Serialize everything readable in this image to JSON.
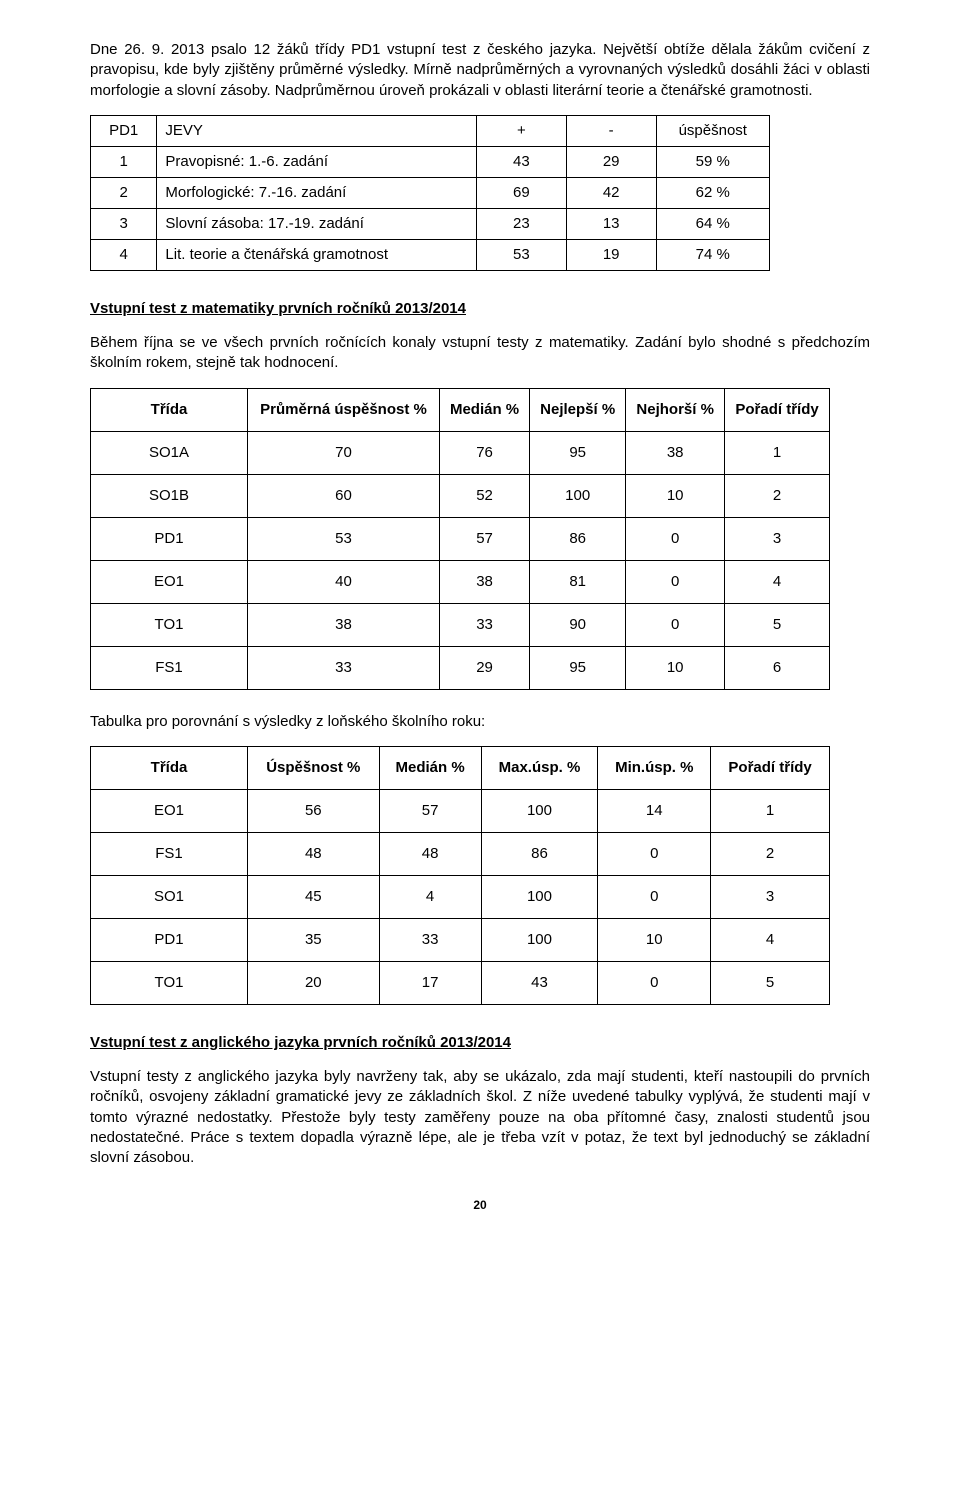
{
  "intro1": "Dne 26. 9. 2013 psalo 12 žáků třídy PD1 vstupní test z českého jazyka. Největší obtíže dělala žákům cvičení z pravopisu, kde byly zjištěny průměrné výsledky. Mírně nadprůměrných a vyrovnaných výsledků dosáhli žáci v oblasti morfologie a slovní zásoby. Nadprůměrnou úroveň prokázali v oblasti literární teorie a čtenářské gramotnosti.",
  "table1": {
    "header": {
      "id": "PD1",
      "label": "JEVY",
      "plus": "+",
      "minus": "-",
      "pct": "úspěšnost"
    },
    "rows": [
      {
        "n": "1",
        "label": "Pravopisné: 1.-6. zadání",
        "plus": "43",
        "minus": "29",
        "pct": "59 %"
      },
      {
        "n": "2",
        "label": "Morfologické: 7.-16. zadání",
        "plus": "69",
        "minus": "42",
        "pct": "62 %"
      },
      {
        "n": "3",
        "label": "Slovní zásoba: 17.-19. zadání",
        "plus": "23",
        "minus": "13",
        "pct": "64 %"
      },
      {
        "n": "4",
        "label": "Lit. teorie a čtenářská gramotnost",
        "plus": "53",
        "minus": "19",
        "pct": "74 %"
      }
    ]
  },
  "section2_title": "Vstupní test z matematiky prvních ročníků 2013/2014",
  "section2_text": "Během října se ve všech prvních ročnících konaly vstupní testy z matematiky. Zadání bylo shodné s předchozím školním rokem, stejně tak hodnocení.",
  "table2": {
    "header": {
      "c1": "Třída",
      "c2": "Průměrná úspěšnost %",
      "c3": "Medián %",
      "c4": "Nejlepší %",
      "c5": "Nejhorší %",
      "c6": "Pořadí třídy"
    },
    "rows": [
      {
        "c1": "SO1A",
        "c2": "70",
        "c3": "76",
        "c4": "95",
        "c5": "38",
        "c6": "1"
      },
      {
        "c1": "SO1B",
        "c2": "60",
        "c3": "52",
        "c4": "100",
        "c5": "10",
        "c6": "2"
      },
      {
        "c1": "PD1",
        "c2": "53",
        "c3": "57",
        "c4": "86",
        "c5": "0",
        "c6": "3"
      },
      {
        "c1": "EO1",
        "c2": "40",
        "c3": "38",
        "c4": "81",
        "c5": "0",
        "c6": "4"
      },
      {
        "c1": "TO1",
        "c2": "38",
        "c3": "33",
        "c4": "90",
        "c5": "0",
        "c6": "5"
      },
      {
        "c1": "FS1",
        "c2": "33",
        "c3": "29",
        "c4": "95",
        "c5": "10",
        "c6": "6"
      }
    ]
  },
  "section3_text": "Tabulka pro porovnání s výsledky z loňského školního roku:",
  "table3": {
    "header": {
      "c1": "Třída",
      "c2": "Úspěšnost %",
      "c3": "Medián %",
      "c4": "Max.úsp. %",
      "c5": "Min.úsp. %",
      "c6": "Pořadí třídy"
    },
    "rows": [
      {
        "c1": "EO1",
        "c2": "56",
        "c3": "57",
        "c4": "100",
        "c5": "14",
        "c6": "1"
      },
      {
        "c1": "FS1",
        "c2": "48",
        "c3": "48",
        "c4": "86",
        "c5": "0",
        "c6": "2"
      },
      {
        "c1": "SO1",
        "c2": "45",
        "c3": "4",
        "c4": "100",
        "c5": "0",
        "c6": "3"
      },
      {
        "c1": "PD1",
        "c2": "35",
        "c3": "33",
        "c4": "100",
        "c5": "10",
        "c6": "4"
      },
      {
        "c1": "TO1",
        "c2": "20",
        "c3": "17",
        "c4": "43",
        "c5": "0",
        "c6": "5"
      }
    ]
  },
  "section4_title": "Vstupní test z anglického jazyka prvních ročníků 2013/2014",
  "section4_text": "Vstupní testy z anglického jazyka byly navrženy tak, aby se ukázalo, zda mají studenti, kteří nastoupili do prvních ročníků, osvojeny základní gramatické jevy ze základních škol. Z níže uvedené tabulky vyplývá, že studenti mají v tomto výrazné nedostatky. Přestože byly testy zaměřeny pouze na oba přítomné časy, znalosti studentů jsou nedostatečné. Práce s textem dopadla výrazně lépe, ale je třeba vzít v potaz, že text byl jednoduchý se základní slovní zásobou.",
  "page_number": "20"
}
